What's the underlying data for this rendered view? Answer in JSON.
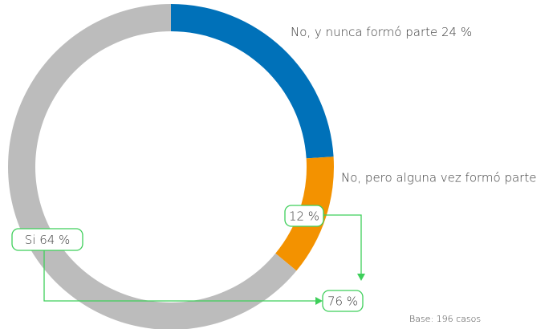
{
  "chart_data": {
    "type": "donut",
    "categories": [
      "No, y nunca formó parte",
      "No, pero alguna vez formó parte",
      "Si"
    ],
    "values": [
      24,
      12,
      64
    ],
    "value_labels": [
      "24 %",
      "12 %",
      "64 %"
    ],
    "colors": [
      "#0071b9",
      "#f39200",
      "#bcbcbc"
    ],
    "annotation": "76 %",
    "note": "Base: 196 casos"
  }
}
